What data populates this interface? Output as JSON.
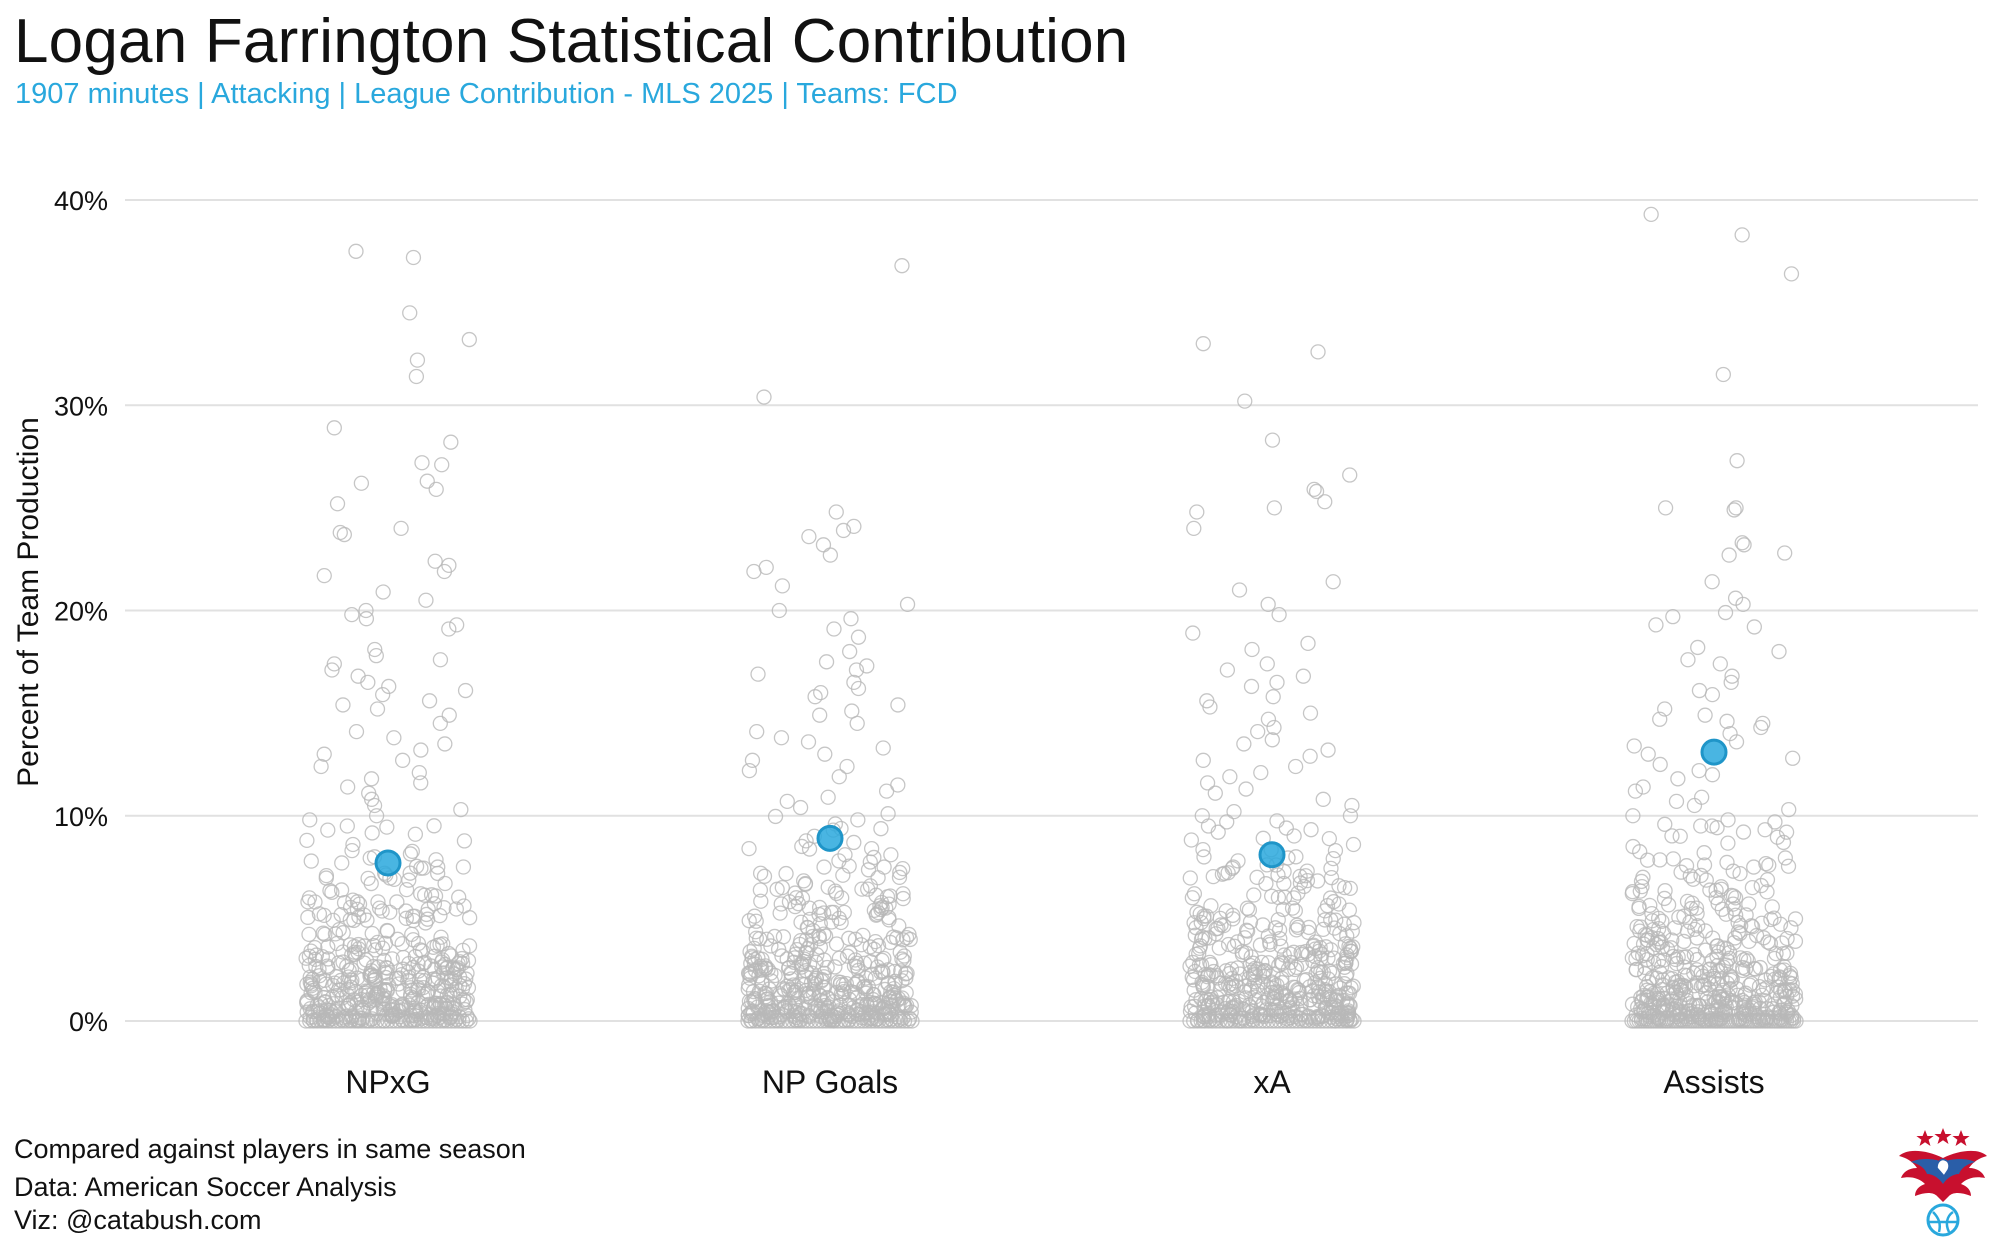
{
  "header": {
    "title": "Logan Farrington Statistical Contribution",
    "subtitle": "1907 minutes | Attacking | League Contribution - MLS 2025 | Teams: FCD"
  },
  "colors": {
    "accent": "#29a8dd",
    "distribution_points": "#b8b8b8",
    "gridline": "#e1e1e1",
    "logo_red": "#c8102e",
    "logo_blue": "#2a5ea8"
  },
  "chart_data": {
    "type": "scatter",
    "ylabel": "Percent of Team Production",
    "categories": [
      "NPxG",
      "NP Goals",
      "xA",
      "Assists"
    ],
    "y_ticks": [
      "0%",
      "10%",
      "20%",
      "30%",
      "40%"
    ],
    "ylim": [
      0,
      40
    ],
    "grid": true,
    "series": [
      {
        "name": "Logan Farrington",
        "values": [
          7.7,
          8.9,
          8.1,
          13.1
        ]
      }
    ],
    "league_distribution": {
      "NPxG": [
        37.2,
        37.5,
        34.5,
        33.2,
        32.2,
        31.4,
        28.9,
        28.2,
        27.2,
        27.1,
        26.3,
        26.2,
        25.9,
        25.2,
        24.0,
        23.7,
        23.8,
        22.4,
        22.2,
        21.9,
        21.7,
        20.9,
        20.5,
        20.0,
        19.8,
        19.6,
        19.3,
        19.1,
        18.1,
        17.8,
        17.6,
        17.4,
        17.1,
        16.8,
        16.5,
        16.3,
        16.1,
        15.9,
        15.6,
        15.4,
        15.2,
        14.9,
        14.5,
        14.1,
        13.8,
        13.5,
        13.2,
        13.0,
        12.7,
        12.4,
        12.1,
        11.8,
        11.6,
        11.4,
        11.1,
        10.8,
        10.5,
        10.3,
        10.0,
        9.8,
        9.5,
        9.3,
        9.1,
        8.8,
        8.6,
        8.3,
        8.0,
        7.7,
        7.5,
        7.2,
        6.9,
        6.7,
        6.4,
        6.2,
        6.0,
        5.8,
        5.5,
        5.3,
        5.1,
        4.9
      ],
      "NP Goals": [
        36.8,
        30.4,
        24.8,
        24.1,
        23.9,
        23.6,
        23.2,
        22.7,
        22.1,
        21.9,
        21.2,
        20.3,
        20.0,
        19.6,
        19.1,
        18.7,
        18.0,
        17.5,
        17.3,
        17.1,
        16.9,
        16.5,
        16.2,
        16.0,
        15.8,
        15.4,
        15.1,
        14.9,
        14.5,
        14.1,
        13.8,
        13.6,
        13.3,
        13.0,
        12.7,
        12.4,
        12.2,
        11.9,
        11.5,
        11.2,
        10.9,
        10.7,
        10.4,
        10.1,
        9.8,
        9.6,
        9.3,
        9.0,
        8.7,
        8.4,
        8.1,
        7.8,
        7.5,
        7.2,
        7.0,
        6.7,
        6.5,
        6.2,
        6.0,
        5.7,
        5.5,
        5.2,
        5.0,
        4.8
      ],
      "xA": [
        33.0,
        32.6,
        30.2,
        28.3,
        26.6,
        25.9,
        25.8,
        25.3,
        25.0,
        24.8,
        24.0,
        21.4,
        21.0,
        20.3,
        19.8,
        18.9,
        18.4,
        18.1,
        17.4,
        17.1,
        16.8,
        16.5,
        16.3,
        15.8,
        15.6,
        15.3,
        15.0,
        14.7,
        14.3,
        14.1,
        13.7,
        13.5,
        13.2,
        12.9,
        12.7,
        12.4,
        12.1,
        11.9,
        11.6,
        11.3,
        11.1,
        10.8,
        10.5,
        10.2,
        10.0,
        9.7,
        9.4,
        9.2,
        8.9,
        8.6,
        8.3,
        8.0,
        7.8,
        7.5,
        7.2,
        7.0,
        6.7,
        6.5,
        6.2,
        6.0,
        5.7,
        5.5,
        5.3,
        5.0,
        4.8
      ],
      "Assists": [
        39.3,
        38.3,
        36.4,
        31.5,
        27.3,
        25.0,
        25.0,
        24.9,
        23.3,
        23.2,
        22.8,
        22.7,
        21.4,
        20.6,
        20.3,
        19.9,
        19.7,
        19.3,
        19.2,
        18.2,
        18.0,
        17.6,
        17.4,
        16.8,
        16.5,
        16.1,
        15.9,
        15.2,
        14.9,
        14.7,
        14.6,
        14.5,
        14.3,
        14.0,
        13.6,
        13.4,
        13.0,
        12.8,
        12.5,
        12.2,
        12.0,
        11.8,
        11.4,
        11.2,
        10.9,
        10.7,
        10.5,
        10.3,
        10.0,
        9.8,
        9.5,
        9.2,
        9.0,
        8.7,
        8.5,
        8.2,
        7.9,
        7.6,
        7.3,
        7.0,
        6.8,
        6.5,
        6.3,
        6.0,
        5.7,
        5.5,
        5.2,
        5.0
      ]
    }
  },
  "footer": {
    "line1": "Compared against players in same season",
    "line2": "Data: American Soccer Analysis",
    "line3": "Viz: @catabush.com"
  }
}
